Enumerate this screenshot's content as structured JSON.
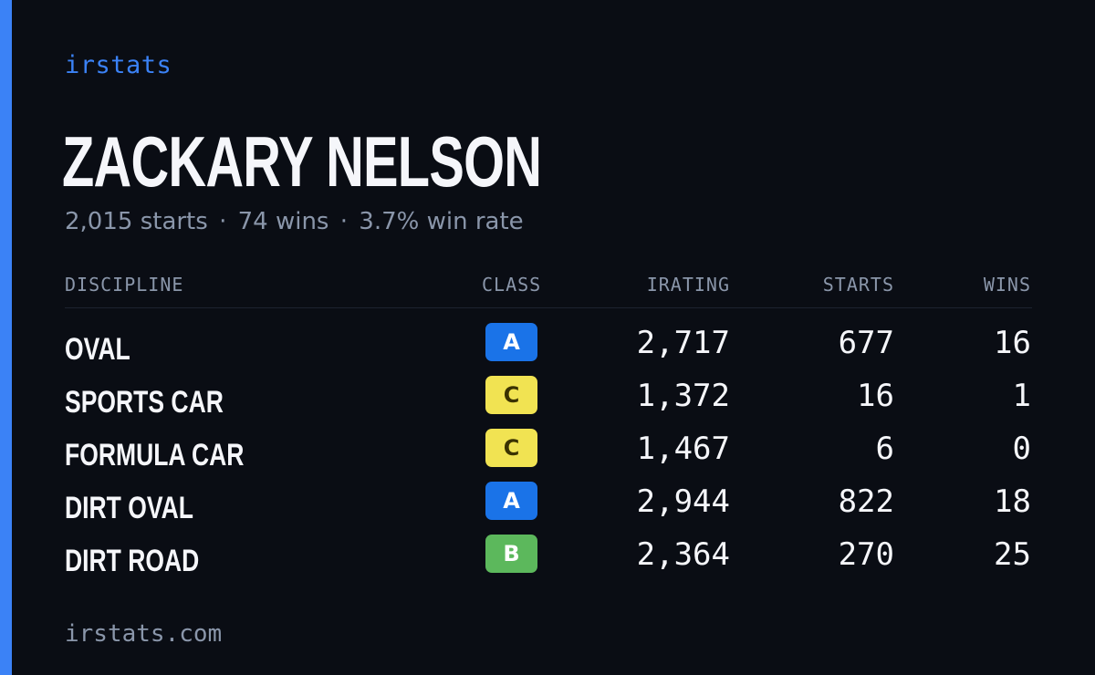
{
  "brand": "irstats",
  "player": {
    "name": "ZACKARY NELSON",
    "summary": {
      "starts": "2,015 starts",
      "wins": "74 wins",
      "win_rate": "3.7% win rate",
      "separator": "·"
    }
  },
  "table": {
    "headers": {
      "discipline": "DISCIPLINE",
      "class": "CLASS",
      "irating": "IRATING",
      "starts": "STARTS",
      "wins": "WINS"
    },
    "rows": [
      {
        "discipline": "OVAL",
        "class": "A",
        "class_color": "#1a73e8",
        "class_text_color": "#ffffff",
        "irating": "2,717",
        "starts": "677",
        "wins": "16"
      },
      {
        "discipline": "SPORTS CAR",
        "class": "C",
        "class_color": "#f1e352",
        "class_text_color": "#3a3200",
        "irating": "1,372",
        "starts": "16",
        "wins": "1"
      },
      {
        "discipline": "FORMULA CAR",
        "class": "C",
        "class_color": "#f1e352",
        "class_text_color": "#3a3200",
        "irating": "1,467",
        "starts": "6",
        "wins": "0"
      },
      {
        "discipline": "DIRT OVAL",
        "class": "A",
        "class_color": "#1a73e8",
        "class_text_color": "#ffffff",
        "irating": "2,944",
        "starts": "822",
        "wins": "18"
      },
      {
        "discipline": "DIRT ROAD",
        "class": "B",
        "class_color": "#5cb85c",
        "class_text_color": "#ffffff",
        "irating": "2,364",
        "starts": "270",
        "wins": "25"
      }
    ]
  },
  "footer": "irstats.com",
  "colors": {
    "background": "#0a0d14",
    "accent": "#3b82f6",
    "text_primary": "#f5f6fa",
    "text_muted": "#8a96aa"
  }
}
